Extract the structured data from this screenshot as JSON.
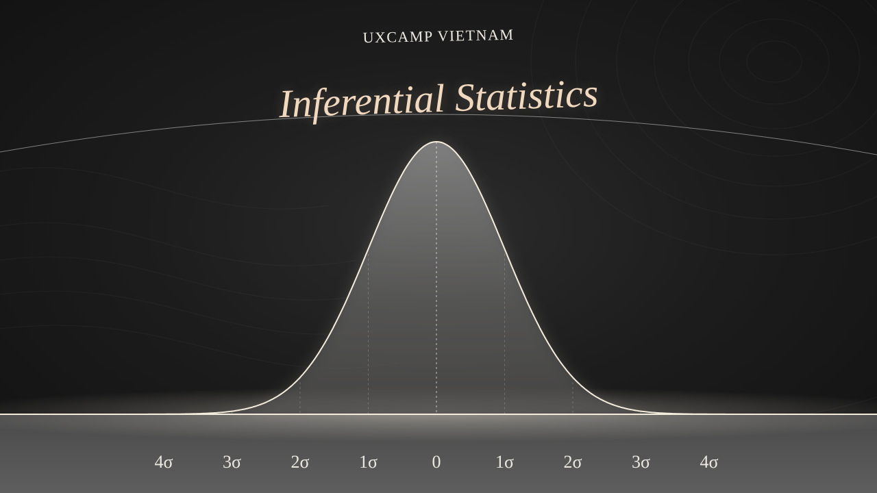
{
  "header": {
    "brand": "UXCAMP VIETNAM",
    "title": "Inferential Statistics"
  },
  "colors": {
    "background": "#1a1a1a",
    "curve": "#f4ecdc",
    "title": "#f1d9bf",
    "text": "#ece8e0"
  },
  "chart_data": {
    "type": "area",
    "distribution": "normal",
    "mean": 0,
    "std_dev": 1,
    "x_range": [
      -4,
      4
    ],
    "ylim": [
      0,
      0.4
    ],
    "grid": false,
    "ticks": [
      -4,
      -3,
      -2,
      -1,
      0,
      1,
      2,
      3,
      4
    ],
    "tick_labels": [
      "4σ",
      "3σ",
      "2σ",
      "1σ",
      "0",
      "1σ",
      "2σ",
      "3σ",
      "4σ"
    ]
  }
}
